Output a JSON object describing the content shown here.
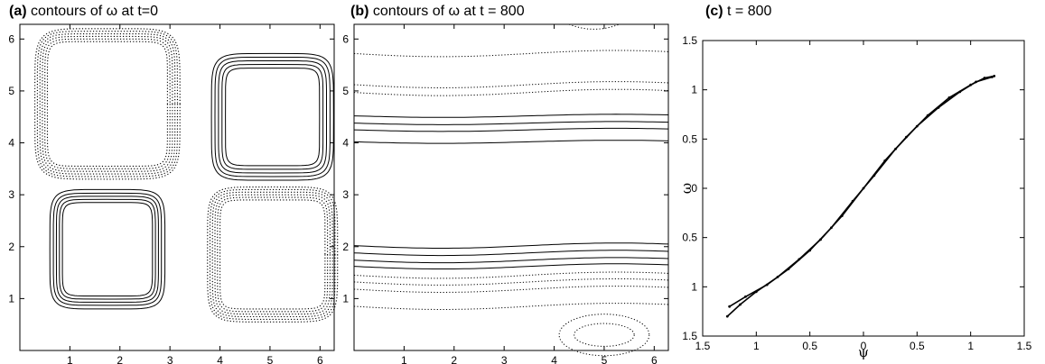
{
  "chart_data": [
    {
      "panel": "(a)",
      "title": "contours of ω at t=0",
      "type": "contour",
      "xlim": [
        0,
        6.283
      ],
      "ylim": [
        0,
        6.283
      ],
      "xticks": [
        "1",
        "2",
        "3",
        "4",
        "5",
        "6"
      ],
      "yticks": [
        "1",
        "2",
        "3",
        "4",
        "5",
        "6"
      ],
      "xlabel": "",
      "ylabel": "",
      "cells": [
        {
          "cx": 1.75,
          "cy": 1.95,
          "sign": "positive",
          "halfwidths": [
            1.15,
            1.08,
            1.02,
            0.96,
            0.9
          ]
        },
        {
          "cx": 5.05,
          "cy": 4.5,
          "sign": "positive",
          "halfwidths": [
            1.22,
            1.15,
            1.08,
            1.01,
            0.94
          ]
        },
        {
          "cx": 1.75,
          "cy": 4.75,
          "sign": "negative",
          "halfwidths": [
            1.45,
            1.4,
            1.35,
            1.3,
            1.25,
            1.2
          ]
        },
        {
          "cx": 5.05,
          "cy": 1.85,
          "sign": "negative",
          "halfwidths": [
            1.3,
            1.25,
            1.2,
            1.15,
            1.1,
            1.05
          ]
        }
      ]
    },
    {
      "panel": "(b)",
      "title": "contours of ω at t = 800",
      "type": "contour",
      "xlim": [
        0,
        6.283
      ],
      "ylim": [
        0,
        6.283
      ],
      "xticks": [
        "1",
        "2",
        "3",
        "4",
        "5",
        "6"
      ],
      "yticks": [
        "1",
        "2",
        "3",
        "4",
        "5",
        "6"
      ],
      "xlabel": "",
      "ylabel": "",
      "solid_levels": [
        4.02,
        4.25,
        4.38,
        4.52,
        1.62,
        1.74,
        1.88,
        2.02
      ],
      "dotted_levels": [
        5.72,
        5.12,
        4.97,
        1.45,
        1.32,
        1.18,
        0.85
      ],
      "dotted_ovals": [
        {
          "cx": 5.0,
          "cy": 0.3,
          "rx": 0.9,
          "ry": 0.4
        },
        {
          "cx": 5.0,
          "cy": 0.3,
          "rx": 0.6,
          "ry": 0.22
        }
      ],
      "top_arc": {
        "cx": 4.8,
        "y": 6.2,
        "half": 0.5
      }
    },
    {
      "panel": "(c)",
      "title": "t = 800",
      "type": "scatter",
      "xlim": [
        -1.5,
        1.5
      ],
      "ylim": [
        -1.5,
        1.5
      ],
      "xticks": [
        "1.5",
        "1",
        "0.5",
        "0",
        "0.5",
        "1",
        "1.5"
      ],
      "yticks": [
        "1.5",
        "1",
        "0.5",
        "0",
        "0.5",
        "1",
        "1.5"
      ],
      "xlabel": "ψ",
      "ylabel": "ω",
      "series": [
        {
          "x": [
            -1.27,
            -1.15,
            -1.0,
            -0.8,
            -0.6,
            -0.4,
            -0.2,
            0.0,
            0.2,
            0.4,
            0.6,
            0.8,
            1.0,
            1.13,
            1.22
          ],
          "y": [
            -1.3,
            -1.18,
            -1.05,
            -0.9,
            -0.72,
            -0.52,
            -0.28,
            0.0,
            0.28,
            0.52,
            0.74,
            0.92,
            1.05,
            1.12,
            1.14
          ]
        },
        {
          "x": [
            -1.25,
            -1.1,
            -0.9,
            -0.7,
            -0.5,
            -0.3,
            -0.1,
            0.1,
            0.3,
            0.5,
            0.7,
            0.9,
            1.05,
            1.2
          ],
          "y": [
            -1.2,
            -1.1,
            -0.98,
            -0.82,
            -0.63,
            -0.4,
            -0.13,
            0.13,
            0.4,
            0.63,
            0.82,
            0.98,
            1.08,
            1.13
          ]
        }
      ]
    }
  ]
}
